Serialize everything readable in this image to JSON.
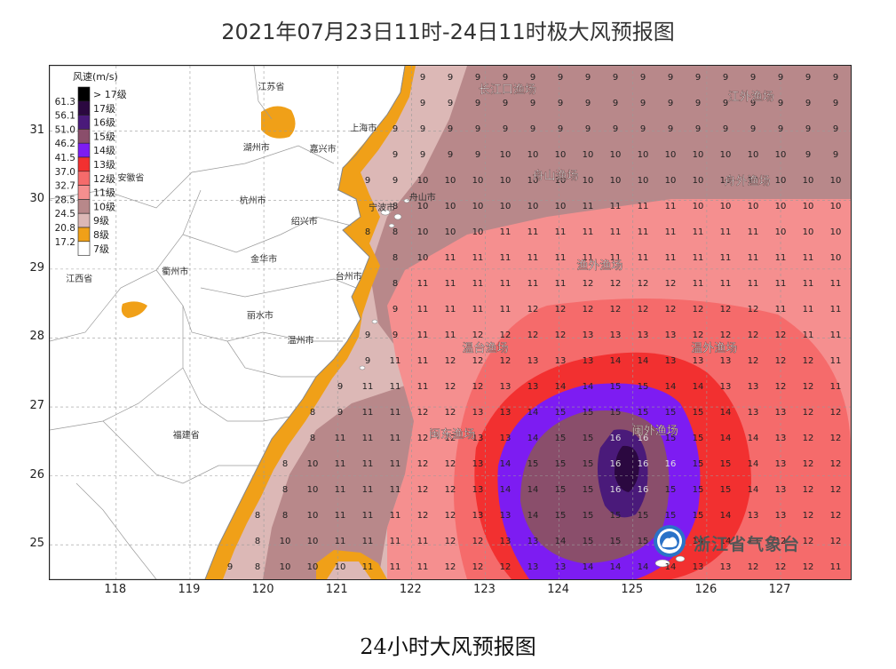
{
  "title": "2021年07月23日11时-24日11时极大风预报图",
  "caption": "24小时大风预报图",
  "map": {
    "x_ticks": [
      "118",
      "119",
      "120",
      "121",
      "122",
      "123",
      "124",
      "125",
      "126",
      "127"
    ],
    "y_ticks": [
      "31",
      "30",
      "29",
      "28",
      "27",
      "26",
      "25"
    ],
    "x_range": [
      117.1,
      127.95
    ],
    "y_range": [
      24.5,
      31.95
    ],
    "grid": true
  },
  "legend": {
    "title": "风速(m/s)",
    "items": [
      {
        "value": "",
        "label": "> 17级",
        "color": "#000000"
      },
      {
        "value": "61.3",
        "label": "17级",
        "color": "#2b0840"
      },
      {
        "value": "56.1",
        "label": "16级",
        "color": "#4a1a7a"
      },
      {
        "value": "51.0",
        "label": "15级",
        "color": "#8a4e6b"
      },
      {
        "value": "46.2",
        "label": "14级",
        "color": "#7d1cf2"
      },
      {
        "value": "41.5",
        "label": "13级",
        "color": "#f23030"
      },
      {
        "value": "37.0",
        "label": "12级",
        "color": "#f56b6b"
      },
      {
        "value": "32.7",
        "label": "11级",
        "color": "#f58f8f"
      },
      {
        "value": "28.5",
        "label": "10级",
        "color": "#b8888a"
      },
      {
        "value": "24.5",
        "label": "9级",
        "color": "#dcb8b6"
      },
      {
        "value": "20.8",
        "label": "8级",
        "color": "#f0a018"
      },
      {
        "value": "17.2",
        "label": "7级",
        "color": "#ffffff"
      }
    ]
  },
  "places": [
    {
      "name": "江苏省",
      "lon": 120.1,
      "lat": 31.6
    },
    {
      "name": "上海市",
      "lon": 121.35,
      "lat": 31.0
    },
    {
      "name": "湖州市",
      "lon": 119.9,
      "lat": 30.72
    },
    {
      "name": "嘉兴市",
      "lon": 120.8,
      "lat": 30.7
    },
    {
      "name": "安徽省",
      "lon": 118.2,
      "lat": 30.28
    },
    {
      "name": "杭州市",
      "lon": 119.85,
      "lat": 29.95
    },
    {
      "name": "舟山市",
      "lon": 122.15,
      "lat": 30.0
    },
    {
      "name": "宁波市",
      "lon": 121.6,
      "lat": 29.85
    },
    {
      "name": "绍兴市",
      "lon": 120.55,
      "lat": 29.65
    },
    {
      "name": "金华市",
      "lon": 120.0,
      "lat": 29.1
    },
    {
      "name": "衢州市",
      "lon": 118.8,
      "lat": 28.92
    },
    {
      "name": "台州市",
      "lon": 121.15,
      "lat": 28.85
    },
    {
      "name": "江西省",
      "lon": 117.5,
      "lat": 28.82
    },
    {
      "name": "丽水市",
      "lon": 119.95,
      "lat": 28.28
    },
    {
      "name": "温州市",
      "lon": 120.5,
      "lat": 27.92
    },
    {
      "name": "福建省",
      "lon": 118.95,
      "lat": 26.55
    }
  ],
  "fisheries": [
    {
      "name": "长江口渔场",
      "lon": 123.3,
      "lat": 31.55
    },
    {
      "name": "江外渔场",
      "lon": 126.6,
      "lat": 31.45
    },
    {
      "name": "舟山渔场",
      "lon": 123.95,
      "lat": 30.3
    },
    {
      "name": "舟外渔场",
      "lon": 126.55,
      "lat": 30.22
    },
    {
      "name": "渔外渔场",
      "lon": 124.55,
      "lat": 29.0
    },
    {
      "name": "温台渔场",
      "lon": 123.0,
      "lat": 27.8
    },
    {
      "name": "温外渔场",
      "lon": 126.1,
      "lat": 27.8
    },
    {
      "name": "闽东渔场",
      "lon": 122.55,
      "lat": 26.55
    },
    {
      "name": "闽外渔场",
      "lon": 125.3,
      "lat": 26.6
    }
  ],
  "logo": {
    "text": "浙江省气象台"
  }
}
